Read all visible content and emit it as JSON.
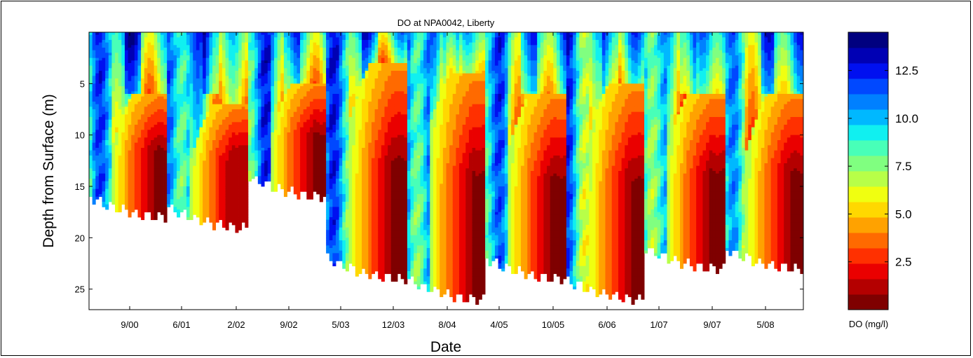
{
  "chart_data": {
    "type": "heatmap",
    "subtype": "filled-contour",
    "title": "DO at NPA0042, Liberty",
    "xlabel": "Date",
    "ylabel": "Depth from Surface (m)",
    "x_ticks": [
      "9/00",
      "6/01",
      "2/02",
      "9/02",
      "5/03",
      "12/03",
      "8/04",
      "4/05",
      "10/05",
      "6/06",
      "1/07",
      "9/07",
      "5/08"
    ],
    "y_ticks": [
      5,
      10,
      15,
      20,
      25
    ],
    "ylim": [
      27,
      0
    ],
    "y_reversed": true,
    "colorbar": {
      "label": "DO (mg/l)",
      "ticks": [
        2.5,
        5.0,
        7.5,
        10.0,
        12.5
      ],
      "tick_labels": [
        "2.5",
        "5.0",
        "7.5",
        "10.0",
        "12.5"
      ],
      "range": [
        0,
        14.5
      ],
      "colormap": "jet",
      "colors": [
        "#7f0000",
        "#b40000",
        "#ea0000",
        "#ff3000",
        "#ff6a00",
        "#ffa200",
        "#ffd800",
        "#f0ff10",
        "#b8ff48",
        "#80ff80",
        "#48ffb8",
        "#10f0f0",
        "#00b8ff",
        "#0080ff",
        "#0048ff",
        "#0010f0",
        "#0000b4",
        "#00007f"
      ]
    },
    "seasonal_profiles": [
      {
        "period": "2000",
        "bottom_depth_m": 18,
        "hypoxic_top_depth_m": 6,
        "min_do_mg_l": 0.5
      },
      {
        "period": "2001",
        "bottom_depth_m": 19,
        "hypoxic_top_depth_m": 7,
        "min_do_mg_l": 1.0
      },
      {
        "period": "2002",
        "bottom_depth_m": 16,
        "hypoxic_top_depth_m": 5,
        "min_do_mg_l": 0.3
      },
      {
        "period": "2003",
        "bottom_depth_m": 24,
        "hypoxic_top_depth_m": 3,
        "min_do_mg_l": 0.2
      },
      {
        "period": "2004",
        "bottom_depth_m": 26,
        "hypoxic_top_depth_m": 4,
        "min_do_mg_l": 0.2
      },
      {
        "period": "2005",
        "bottom_depth_m": 24,
        "hypoxic_top_depth_m": 6,
        "min_do_mg_l": 0.3
      },
      {
        "period": "2006",
        "bottom_depth_m": 26,
        "hypoxic_top_depth_m": 5,
        "min_do_mg_l": 0.3
      },
      {
        "period": "2007",
        "bottom_depth_m": 23,
        "hypoxic_top_depth_m": 6,
        "min_do_mg_l": 0.4
      },
      {
        "period": "2008",
        "bottom_depth_m": 23,
        "hypoxic_top_depth_m": 6,
        "min_do_mg_l": 0.5
      }
    ]
  }
}
